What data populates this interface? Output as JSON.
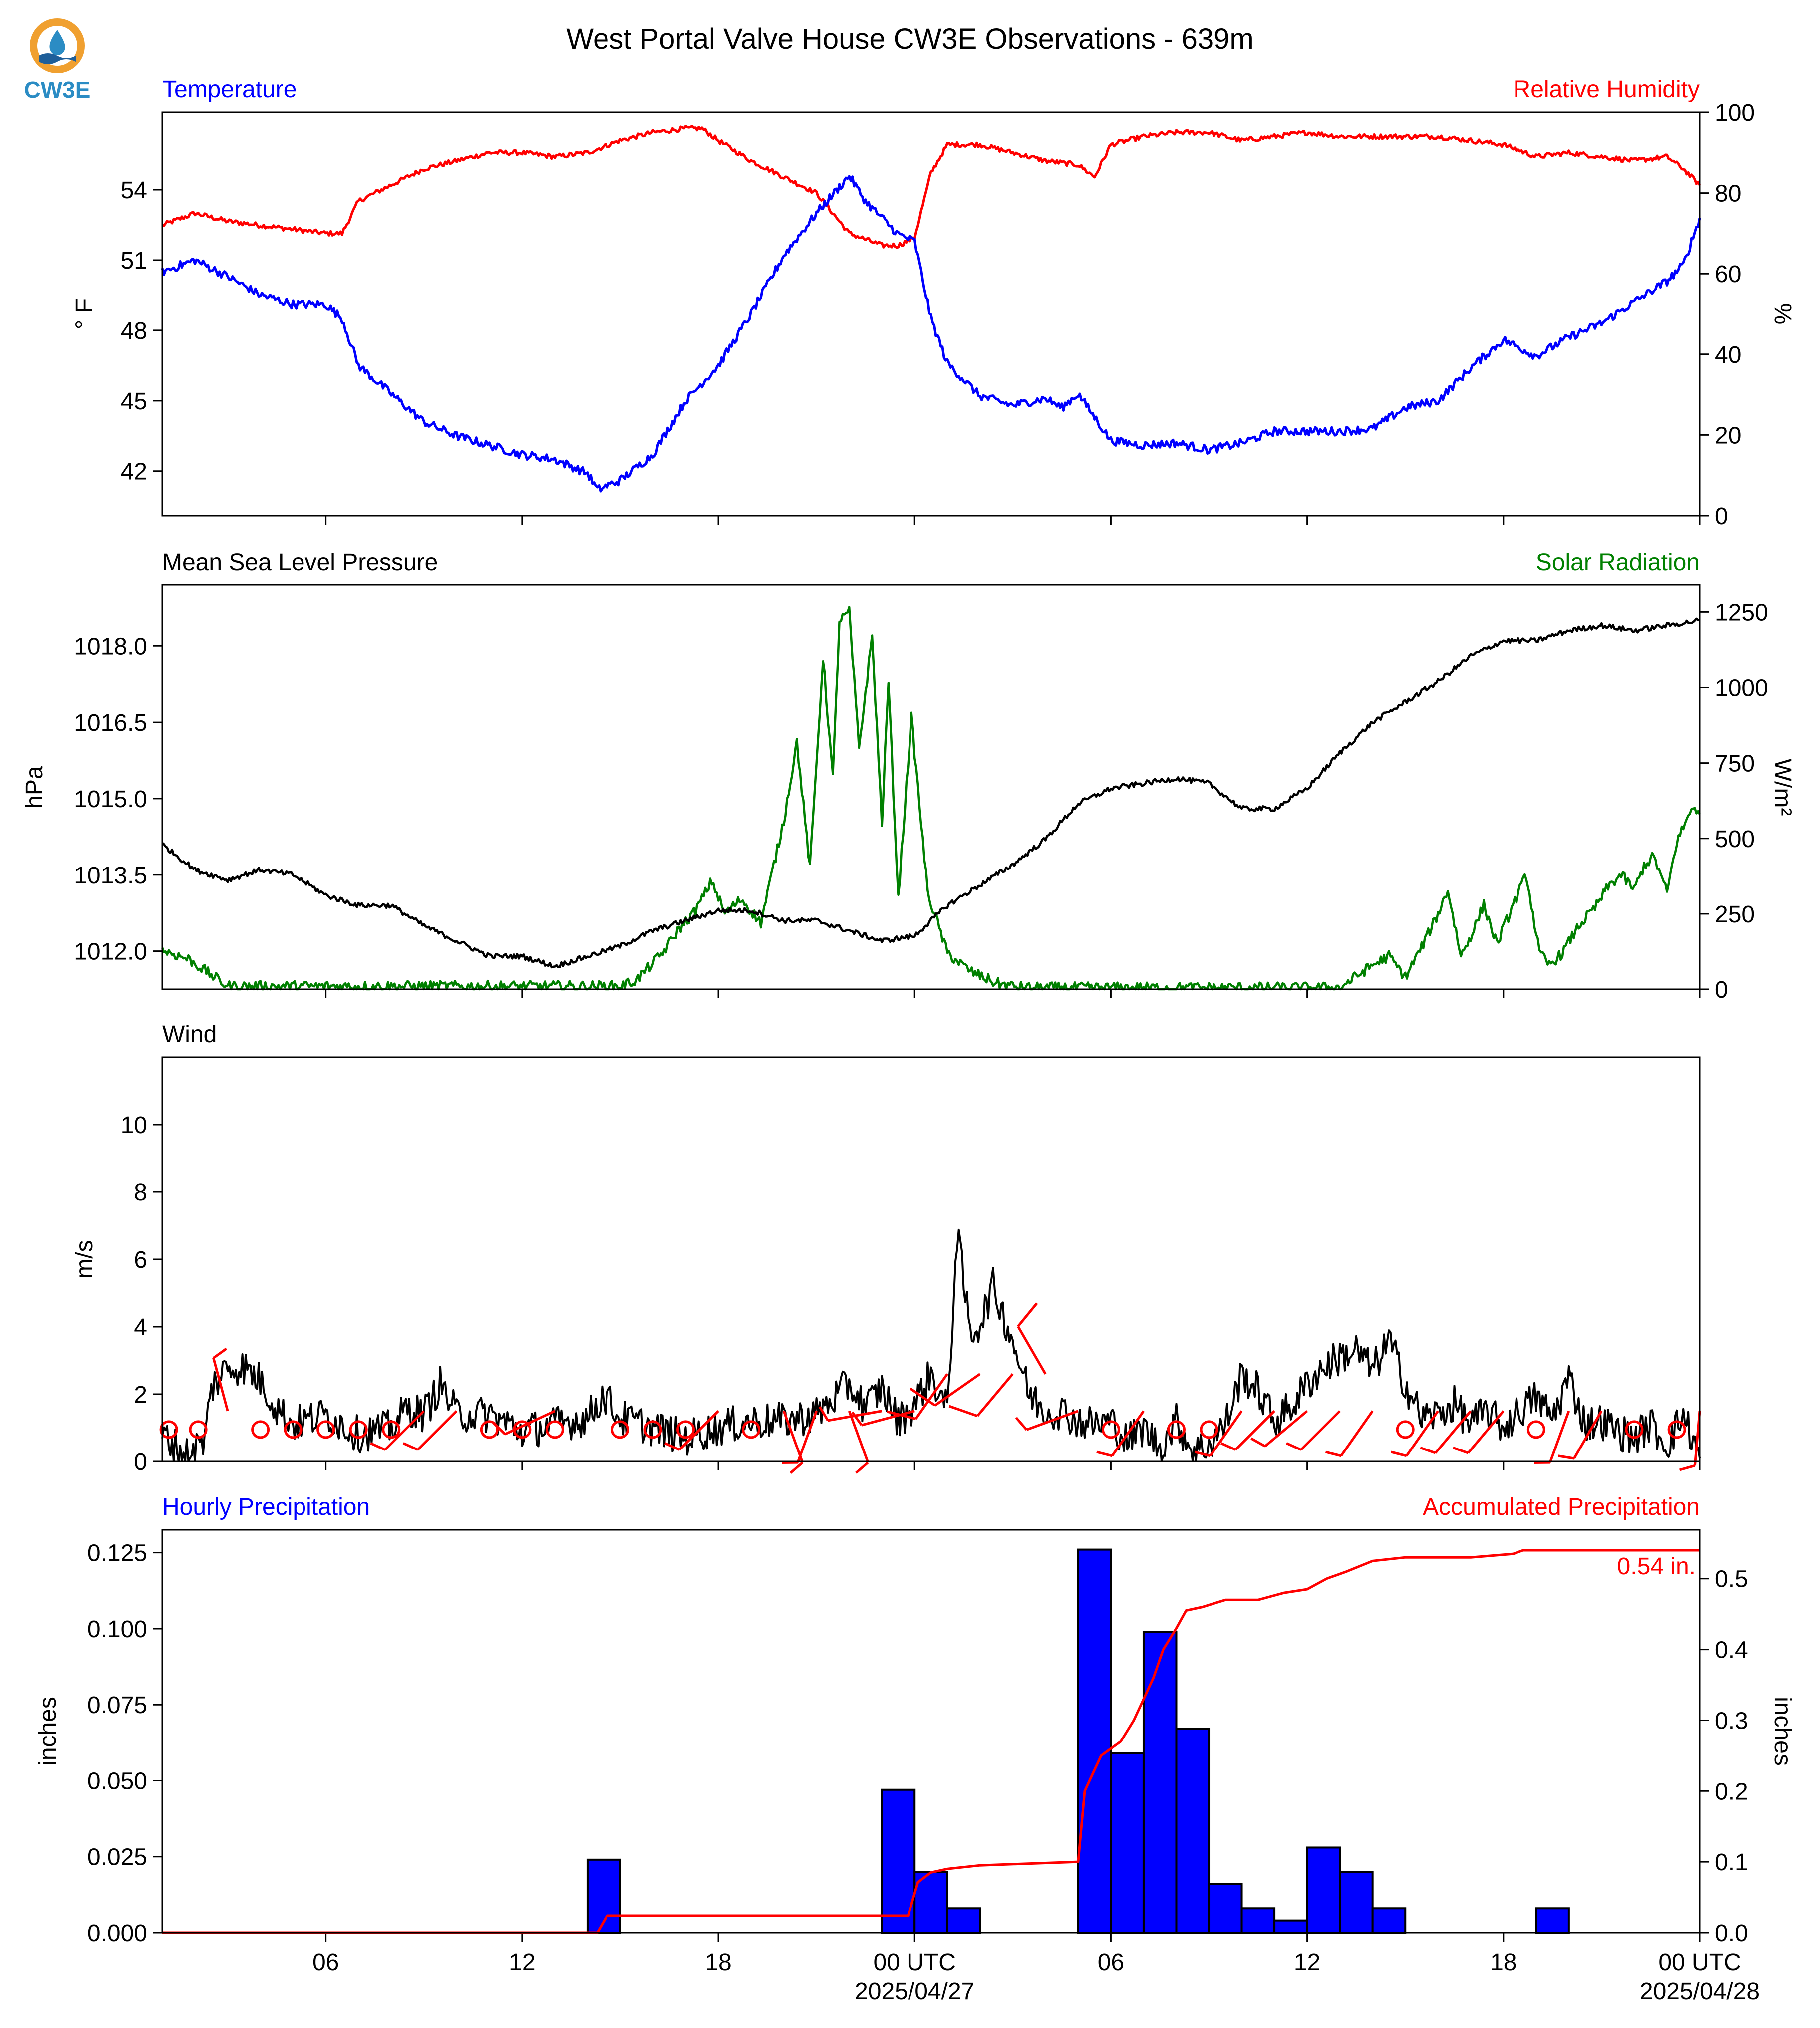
{
  "title": "West Portal Valve House CW3E Observations - 639m",
  "logo": {
    "text": "CW3E",
    "colors": {
      "ring": "#f0a030",
      "drop": "#2b8cc4",
      "waves": "#1f5f9a"
    }
  },
  "colors": {
    "temperature": "#0000ff",
    "humidity": "#ff0000",
    "pressure": "#000000",
    "solar": "#008000",
    "wind": "#000000",
    "barbs": "#ff0000",
    "bars": "#0000ff",
    "accum": "#ff0000"
  },
  "time_axis": {
    "range_hours": [
      0,
      47
    ],
    "ticks": [
      {
        "h": 5,
        "label": "06",
        "sub": ""
      },
      {
        "h": 11,
        "label": "12",
        "sub": ""
      },
      {
        "h": 17,
        "label": "18",
        "sub": ""
      },
      {
        "h": 23,
        "label": "00 UTC",
        "sub": "2025/04/27"
      },
      {
        "h": 29,
        "label": "06",
        "sub": ""
      },
      {
        "h": 35,
        "label": "12",
        "sub": ""
      },
      {
        "h": 41,
        "label": "18",
        "sub": ""
      },
      {
        "h": 47,
        "label": "00 UTC",
        "sub": "2025/04/28"
      }
    ]
  },
  "chart_data": [
    {
      "type": "line",
      "left_title": "Temperature",
      "right_title": "Relative Humidity",
      "ylabel": "° F",
      "ylabel_right": "%",
      "ylim": [
        40.1,
        57.3
      ],
      "yticks": [
        42,
        45,
        48,
        51,
        54
      ],
      "ylim_right": [
        0,
        100
      ],
      "yticks_right": [
        0,
        20,
        40,
        60,
        80,
        100
      ],
      "series": [
        {
          "name": "Temperature",
          "axis": "left",
          "x": [
            0,
            1,
            2,
            3,
            4,
            5,
            5.5,
            6,
            7,
            8,
            9,
            10,
            11,
            12,
            13,
            13.3,
            14,
            15,
            16,
            17,
            18,
            19,
            20,
            21,
            21.5,
            22,
            22.5,
            23,
            23.5,
            24,
            25,
            26,
            27,
            27.5,
            28,
            29,
            30,
            31,
            32,
            33,
            34,
            35,
            36,
            37,
            38,
            39,
            40,
            41,
            42,
            43,
            44,
            45,
            46,
            46.5,
            47
          ],
          "values": [
            50.5,
            51,
            50.3,
            49.5,
            49.1,
            49.1,
            48.5,
            46.5,
            45.3,
            44.1,
            43.5,
            43.1,
            42.7,
            42.5,
            41.9,
            41.2,
            41.6,
            42.7,
            45,
            46.5,
            48.7,
            51.2,
            53,
            54.6,
            53.5,
            52.8,
            52.1,
            51.8,
            48.5,
            46.6,
            45.2,
            44.8,
            45.1,
            44.7,
            45.3,
            43.3,
            43.1,
            43.2,
            42.9,
            43.2,
            43.7,
            43.7,
            43.7,
            43.8,
            44.7,
            45,
            46.4,
            47.6,
            46.9,
            47.7,
            48.3,
            49.2,
            50.1,
            50.8,
            52.8
          ]
        },
        {
          "name": "Relative Humidity",
          "axis": "right",
          "x": [
            0,
            1,
            2,
            3,
            4,
            5,
            5.5,
            6,
            7,
            8,
            9,
            10,
            11,
            12,
            13,
            14,
            15,
            16,
            16.5,
            17,
            18,
            19,
            20,
            21,
            22,
            22.5,
            23,
            23.5,
            24,
            25,
            26,
            27,
            28,
            28.5,
            29,
            30,
            31,
            32,
            33,
            34,
            35,
            36,
            37,
            38,
            39,
            40,
            41,
            42,
            43,
            44,
            45,
            46,
            46.5,
            47
          ],
          "values": [
            72,
            75,
            73,
            72,
            71,
            70,
            70,
            78,
            82,
            86,
            88,
            90,
            90,
            89,
            90,
            93,
            95,
            96,
            96,
            93,
            88,
            84,
            80,
            70,
            67,
            67,
            69,
            85,
            92,
            92,
            90,
            88,
            87,
            84,
            92,
            94,
            95,
            95,
            93,
            94,
            95,
            94,
            94,
            94,
            94,
            93,
            92,
            89,
            90,
            89,
            88,
            89,
            86,
            82
          ]
        }
      ]
    },
    {
      "type": "line",
      "left_title": "Mean Sea Level Pressure",
      "right_title": "Solar Radiation",
      "ylabel": "hPa",
      "ylabel_right": "W/m²",
      "ylim": [
        1011.25,
        1019.2
      ],
      "yticks": [
        1012.0,
        1013.5,
        1015.0,
        1016.5,
        1018.0
      ],
      "yticks_format": "1 decimal",
      "ylim_right": [
        0,
        1340
      ],
      "yticks_right": [
        0,
        250,
        500,
        750,
        1000,
        1250
      ],
      "series": [
        {
          "name": "Mean Sea Level Pressure",
          "axis": "left",
          "x": [
            0,
            1,
            2,
            3,
            4,
            5,
            6,
            7,
            8,
            9,
            10,
            11,
            12,
            13,
            14,
            15,
            16,
            17,
            18,
            19,
            20,
            21,
            22,
            23,
            24,
            25,
            26,
            27,
            28,
            29,
            30,
            31,
            32,
            33,
            34,
            35,
            36,
            37,
            38,
            39,
            40,
            41,
            42,
            43,
            44,
            45,
            46,
            47
          ],
          "values": [
            1014.1,
            1013.6,
            1013.4,
            1013.6,
            1013.5,
            1013.1,
            1012.9,
            1012.9,
            1012.5,
            1012.2,
            1011.9,
            1011.9,
            1011.7,
            1011.9,
            1012.1,
            1012.4,
            1012.6,
            1012.8,
            1012.8,
            1012.6,
            1012.6,
            1012.4,
            1012.2,
            1012.3,
            1012.9,
            1013.3,
            1013.7,
            1014.2,
            1014.9,
            1015.2,
            1015.3,
            1015.4,
            1015.3,
            1014.8,
            1014.8,
            1015.2,
            1015.9,
            1016.5,
            1016.9,
            1017.3,
            1017.8,
            1018.1,
            1018.1,
            1018.3,
            1018.4,
            1018.3,
            1018.4,
            1018.5
          ]
        },
        {
          "name": "Solar Radiation",
          "axis": "right",
          "x": [
            0,
            0.8,
            2,
            14,
            14.5,
            15.3,
            15.8,
            16.3,
            16.8,
            17.2,
            17.7,
            18.3,
            19,
            19.4,
            19.8,
            20.2,
            20.5,
            20.7,
            21,
            21.3,
            21.7,
            22,
            22.2,
            22.5,
            22.9,
            23.4,
            24,
            24.7,
            25.5,
            26,
            26.5,
            36,
            37,
            37.5,
            38,
            38.5,
            39,
            39.3,
            39.7,
            40.1,
            40.4,
            40.8,
            41.3,
            41.7,
            42.1,
            42.4,
            42.8,
            43.3,
            43.8,
            44.2,
            44.6,
            45,
            45.3,
            45.6,
            46,
            46.3,
            46.6,
            46.8,
            47
          ],
          "values": [
            130,
            100,
            10,
            10,
            30,
            120,
            200,
            260,
            360,
            250,
            300,
            220,
            560,
            820,
            400,
            1100,
            700,
            1220,
            1250,
            800,
            1170,
            550,
            1020,
            300,
            900,
            320,
            120,
            60,
            20,
            10,
            5,
            5,
            80,
            110,
            40,
            140,
            250,
            330,
            110,
            200,
            280,
            150,
            280,
            380,
            120,
            80,
            120,
            210,
            270,
            340,
            380,
            330,
            410,
            440,
            320,
            490,
            560,
            610,
            580
          ]
        }
      ]
    },
    {
      "type": "line",
      "left_title": "Wind",
      "ylabel": "m/s",
      "ylim": [
        0,
        12
      ],
      "yticks": [
        0,
        2,
        4,
        6,
        8,
        10
      ],
      "series": [
        {
          "name": "Wind speed",
          "x": [
            0,
            0.7,
            1.3,
            1.5,
            2,
            2.5,
            3,
            3.5,
            4,
            5,
            6,
            7,
            7.5,
            8,
            8.5,
            9,
            10,
            11,
            12,
            13,
            13.5,
            14,
            15,
            16,
            17,
            18,
            19,
            20,
            21,
            21.5,
            22,
            22.5,
            23,
            23.5,
            24,
            24.3,
            24.7,
            25,
            25.4,
            26,
            26.5,
            27,
            27.5,
            28,
            28.5,
            29,
            29.5,
            30,
            30.5,
            31,
            31.5,
            32,
            32.5,
            33,
            33.5,
            34,
            34.5,
            35,
            35.5,
            36,
            36.5,
            37,
            37.5,
            38,
            38.5,
            39,
            39.5,
            40,
            40.5,
            41,
            41.5,
            42,
            42.5,
            43,
            43.5,
            44,
            44.5,
            45,
            45.5,
            46,
            46.5,
            47
          ],
          "values": [
            0.8,
            0.2,
            0.6,
            2.2,
            2.8,
            2.8,
            2.4,
            1.6,
            1.1,
            1.4,
            0.8,
            1,
            1.6,
            1.4,
            2.3,
            1.4,
            1.4,
            0.9,
            1.1,
            1.3,
            2,
            1.3,
            1,
            0.7,
            1,
            1.2,
            1.2,
            1.4,
            2.3,
            1.6,
            2.2,
            1.2,
            1.7,
            2.6,
            1.5,
            6.8,
            3.8,
            4.1,
            5.2,
            3.6,
            2,
            1.5,
            1.5,
            1.2,
            1.1,
            1.2,
            0.6,
            1,
            0.4,
            1.2,
            0.3,
            0.5,
            1.1,
            2.6,
            2.1,
            1.2,
            1.6,
            2.3,
            2.8,
            3.1,
            3.3,
            2.7,
            3.6,
            2.3,
            1.3,
            1.4,
            1.7,
            1.1,
            1.5,
            1,
            1.5,
            1.9,
            1.3,
            2.5,
            1.1,
            1.2,
            0.9,
            0.7,
            1.1,
            0.5,
            1.4,
            0.1
          ]
        }
      ],
      "barbs": [
        {
          "x": 0.2,
          "calm": true
        },
        {
          "x": 1.1,
          "calm": true
        },
        {
          "x": 3,
          "calm": true
        },
        {
          "x": 4,
          "calm": true
        },
        {
          "x": 5,
          "calm": true
        },
        {
          "x": 6,
          "calm": true
        },
        {
          "x": 7,
          "calm": true
        },
        {
          "x": 10,
          "calm": true
        },
        {
          "x": 11,
          "calm": true
        },
        {
          "x": 12,
          "calm": true
        },
        {
          "x": 14,
          "calm": true
        },
        {
          "x": 15,
          "calm": true
        },
        {
          "x": 16,
          "calm": true
        },
        {
          "x": 18,
          "calm": true
        },
        {
          "x": 29,
          "calm": true
        },
        {
          "x": 31,
          "calm": true
        },
        {
          "x": 32,
          "calm": true
        },
        {
          "x": 38,
          "calm": true
        },
        {
          "x": 42,
          "calm": true
        },
        {
          "x": 45,
          "calm": true
        },
        {
          "x": 46.3,
          "calm": true
        },
        {
          "x": 2,
          "speed": 2,
          "dir": 345
        },
        {
          "x": 8,
          "speed": 2,
          "dir": 225
        },
        {
          "x": 9,
          "speed": 2,
          "dir": 225
        },
        {
          "x": 12,
          "speed": 2,
          "dir": 245
        },
        {
          "x": 17,
          "speed": 2,
          "dir": 225
        },
        {
          "x": 19,
          "speed": 2,
          "dir": 160
        },
        {
          "x": 20,
          "speed": 2,
          "dir": 200
        },
        {
          "x": 21,
          "speed": 2,
          "dir": 160
        },
        {
          "x": 22,
          "speed": 2,
          "dir": 260
        },
        {
          "x": 23,
          "speed": 2,
          "dir": 255
        },
        {
          "x": 24,
          "speed": 4,
          "dir": 215
        },
        {
          "x": 25,
          "speed": 4,
          "dir": 235
        },
        {
          "x": 26,
          "speed": 4,
          "dir": 220
        },
        {
          "x": 27,
          "speed": 4,
          "dir": 330
        },
        {
          "x": 28,
          "speed": 2,
          "dir": 250
        },
        {
          "x": 30,
          "speed": 2,
          "dir": 215
        },
        {
          "x": 33,
          "speed": 2,
          "dir": 215
        },
        {
          "x": 34,
          "speed": 2,
          "dir": 225
        },
        {
          "x": 35,
          "speed": 2,
          "dir": 230
        },
        {
          "x": 36,
          "speed": 2,
          "dir": 225
        },
        {
          "x": 37,
          "speed": 2,
          "dir": 215
        },
        {
          "x": 39,
          "speed": 2,
          "dir": 215
        },
        {
          "x": 40,
          "speed": 2,
          "dir": 220
        },
        {
          "x": 41,
          "speed": 2,
          "dir": 220
        },
        {
          "x": 43,
          "speed": 2,
          "dir": 200
        },
        {
          "x": 44,
          "speed": 2,
          "dir": 210
        },
        {
          "x": 47,
          "speed": 2,
          "dir": 185
        }
      ]
    },
    {
      "type": "bar",
      "left_title": "Hourly Precipitation",
      "right_title": "Accumulated Precipitation",
      "ylabel": "inches",
      "ylabel_right": "inches",
      "ylim": [
        0,
        0.1325
      ],
      "yticks": [
        0.0,
        0.025,
        0.05,
        0.075,
        0.1,
        0.125
      ],
      "yticks_format": "3 decimals",
      "ylim_right": [
        0,
        0.5689
      ],
      "yticks_right": [
        0.0,
        0.1,
        0.2,
        0.3,
        0.4,
        0.5
      ],
      "bars": {
        "x_start": [
          13,
          22,
          23,
          24,
          28,
          29,
          30,
          31,
          32,
          33,
          34,
          35,
          36,
          37,
          42
        ],
        "values": [
          0.024,
          0.047,
          0.02,
          0.008,
          0.126,
          0.059,
          0.099,
          0.067,
          0.016,
          0.008,
          0.004,
          0.028,
          0.02,
          0.008,
          0.008
        ]
      },
      "series": [
        {
          "name": "Accumulated Precipitation",
          "axis": "right",
          "x": [
            0,
            13.3,
            13.6,
            22.8,
            23.1,
            23.5,
            24,
            25,
            28,
            28.2,
            28.4,
            28.7,
            29,
            29.3,
            29.7,
            30,
            30.3,
            30.6,
            31,
            31.3,
            31.8,
            32.5,
            33.5,
            34.3,
            35,
            35.6,
            36.2,
            37,
            38,
            40,
            41.3,
            41.6,
            47
          ],
          "values": [
            0,
            0,
            0.024,
            0.024,
            0.071,
            0.085,
            0.09,
            0.095,
            0.1,
            0.2,
            0.22,
            0.25,
            0.26,
            0.27,
            0.3,
            0.33,
            0.36,
            0.4,
            0.43,
            0.455,
            0.46,
            0.47,
            0.47,
            0.48,
            0.485,
            0.5,
            0.51,
            0.525,
            0.53,
            0.53,
            0.535,
            0.54,
            0.54
          ]
        }
      ],
      "annotation": "0.54 in."
    }
  ]
}
